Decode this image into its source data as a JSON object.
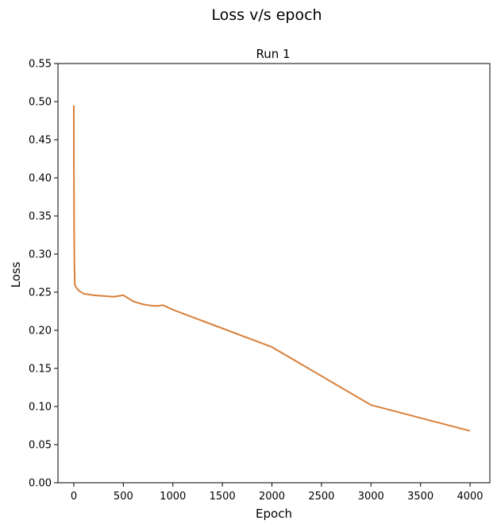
{
  "chart_data": {
    "type": "line",
    "suptitle": "Loss v/s epoch",
    "title": "Run 1",
    "xlabel": "Epoch",
    "ylabel": "Loss",
    "xlim": [
      -160,
      4200
    ],
    "ylim": [
      0.0,
      0.55
    ],
    "xticks": [
      0,
      500,
      1000,
      1500,
      2000,
      2500,
      3000,
      3500,
      4000
    ],
    "xtick_labels": [
      "0",
      "500",
      "1000",
      "1500",
      "2000",
      "2500",
      "3000",
      "3500",
      "4000"
    ],
    "yticks": [
      0.0,
      0.05,
      0.1,
      0.15,
      0.2,
      0.25,
      0.3,
      0.35,
      0.4,
      0.45,
      0.5,
      0.55
    ],
    "ytick_labels": [
      "0.00",
      "0.05",
      "0.10",
      "0.15",
      "0.20",
      "0.25",
      "0.30",
      "0.35",
      "0.40",
      "0.45",
      "0.50",
      "0.55"
    ],
    "grid": false,
    "series": [
      {
        "color": "#d9803a",
        "x": [
          0,
          1,
          3,
          6,
          10,
          20,
          50,
          100,
          150,
          200,
          300,
          400,
          500,
          550,
          600,
          650,
          700,
          750,
          800,
          850,
          900,
          1000,
          2000,
          3000,
          4000
        ],
        "y": [
          0.495,
          0.42,
          0.33,
          0.29,
          0.26,
          0.257,
          0.252,
          0.248,
          0.247,
          0.246,
          0.245,
          0.244,
          0.246,
          0.242,
          0.238,
          0.236,
          0.234,
          0.233,
          0.232,
          0.232,
          0.233,
          0.227,
          0.178,
          0.102,
          0.068
        ]
      }
    ]
  }
}
